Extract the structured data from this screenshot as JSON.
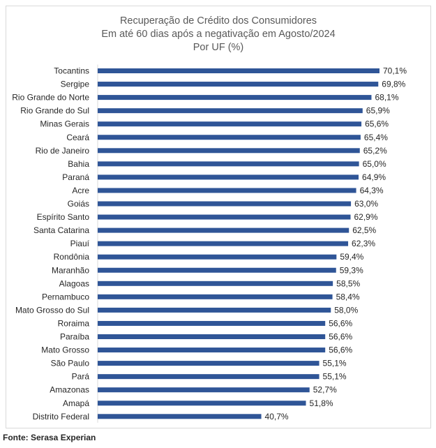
{
  "chart_data": {
    "type": "bar",
    "orientation": "horizontal",
    "title": [
      "Recuperação de Crédito dos Consumidores",
      "Em até 60 dias após a negativação em Agosto/2024",
      "Por UF (%)"
    ],
    "categories": [
      "Tocantins",
      "Sergipe",
      "Rio Grande do Norte",
      "Rio Grande do Sul",
      "Minas Gerais",
      "Ceará",
      "Rio de Janeiro",
      "Bahia",
      "Paraná",
      "Acre",
      "Goiás",
      "Espírito Santo",
      "Santa Catarina",
      "Piauí",
      "Rondônia",
      "Maranhão",
      "Alagoas",
      "Pernambuco",
      "Mato Grosso do Sul",
      "Roraima",
      "Paraíba",
      "Mato Grosso",
      "São Paulo",
      "Pará",
      "Amazonas",
      "Amapá",
      "Distrito Federal"
    ],
    "values": [
      70.1,
      69.8,
      68.1,
      65.9,
      65.6,
      65.4,
      65.2,
      65.0,
      64.9,
      64.3,
      63.0,
      62.9,
      62.5,
      62.3,
      59.4,
      59.3,
      58.5,
      58.4,
      58.0,
      56.6,
      56.6,
      56.6,
      55.1,
      55.1,
      52.7,
      51.8,
      40.7
    ],
    "value_labels": [
      "70,1%",
      "69,8%",
      "68,1%",
      "65,9%",
      "65,6%",
      "65,4%",
      "65,2%",
      "65,0%",
      "64,9%",
      "64,3%",
      "63,0%",
      "62,9%",
      "62,5%",
      "62,3%",
      "59,4%",
      "59,3%",
      "58,5%",
      "58,4%",
      "58,0%",
      "56,6%",
      "56,6%",
      "56,6%",
      "55,1%",
      "55,1%",
      "52,7%",
      "51,8%",
      "40,7%"
    ],
    "bar_color": "#2f5597",
    "xlim": [
      0,
      70.1
    ],
    "grid": false,
    "legend": "none"
  },
  "source": "Fonte: Serasa Experian"
}
